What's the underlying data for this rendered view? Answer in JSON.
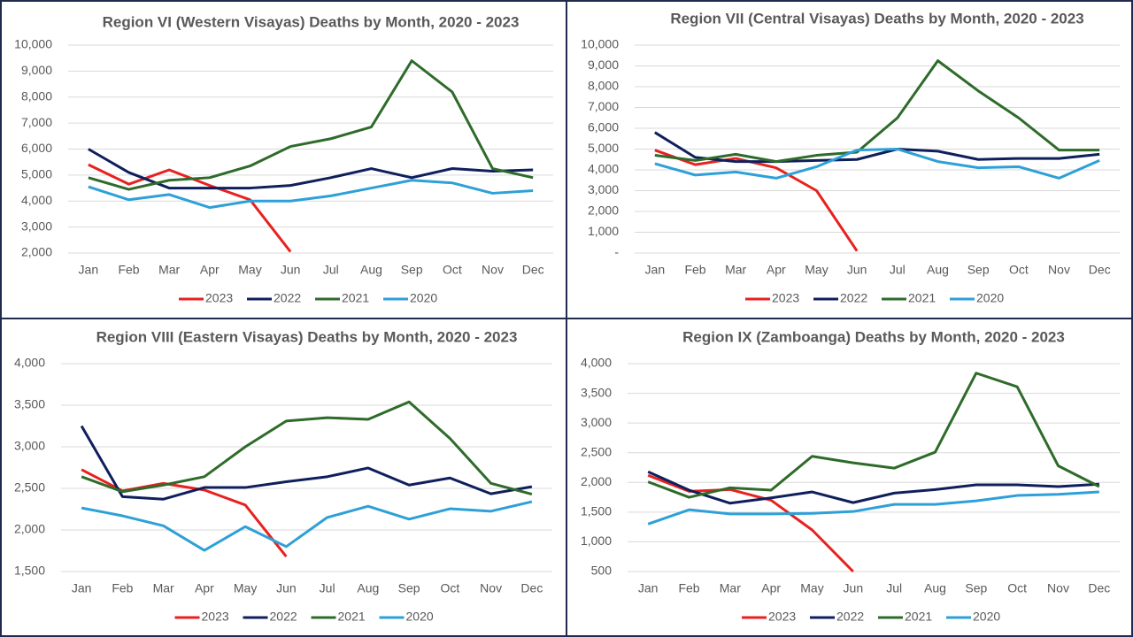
{
  "chart_data": [
    {
      "type": "line",
      "title": "Region VI (Western Visayas) Deaths by Month, 2020 - 2023",
      "categories": [
        "Jan",
        "Feb",
        "Mar",
        "Apr",
        "May",
        "Jun",
        "Jul",
        "Aug",
        "Sep",
        "Oct",
        "Nov",
        "Dec"
      ],
      "series": [
        {
          "name": "2023",
          "color": "#e8211f",
          "values": [
            5400,
            4650,
            5200,
            4600,
            4050,
            2050,
            null,
            null,
            null,
            null,
            null,
            null
          ]
        },
        {
          "name": "2022",
          "color": "#0f1f5c",
          "values": [
            6000,
            5100,
            4500,
            4500,
            4500,
            4600,
            4900,
            5250,
            4900,
            5250,
            5150,
            5200
          ]
        },
        {
          "name": "2021",
          "color": "#2e6b2a",
          "values": [
            4900,
            4450,
            4800,
            4900,
            5350,
            6100,
            6400,
            6850,
            9400,
            8200,
            5250,
            4900
          ]
        },
        {
          "name": "2020",
          "color": "#2ea0d8",
          "values": [
            4550,
            4050,
            4250,
            3750,
            4000,
            4000,
            4200,
            4500,
            4800,
            4700,
            4300,
            4400
          ]
        }
      ],
      "ylim": [
        2000,
        10000
      ],
      "yticks": [
        {
          "value": 2000,
          "label": "2,000"
        },
        {
          "value": 3000,
          "label": "3,000"
        },
        {
          "value": 4000,
          "label": "4,000"
        },
        {
          "value": 5000,
          "label": "5,000"
        },
        {
          "value": 6000,
          "label": "6,000"
        },
        {
          "value": 7000,
          "label": "7,000"
        },
        {
          "value": 8000,
          "label": "8,000"
        },
        {
          "value": 9000,
          "label": "9,000"
        },
        {
          "value": 10000,
          "label": "10,000"
        }
      ],
      "grid": true,
      "legend": "bottom"
    },
    {
      "type": "line",
      "title": "Region VII (Central Visayas) Deaths by Month, 2020 - 2023",
      "categories": [
        "Jan",
        "Feb",
        "Mar",
        "Apr",
        "May",
        "Jun",
        "Jul",
        "Aug",
        "Sep",
        "Oct",
        "Nov",
        "Dec"
      ],
      "series": [
        {
          "name": "2023",
          "color": "#e8211f",
          "values": [
            4950,
            4250,
            4550,
            4100,
            3000,
            100,
            null,
            null,
            null,
            null,
            null,
            null
          ]
        },
        {
          "name": "2022",
          "color": "#0f1f5c",
          "values": [
            5800,
            4600,
            4400,
            4400,
            4450,
            4500,
            5000,
            4900,
            4500,
            4550,
            4550,
            4750
          ]
        },
        {
          "name": "2021",
          "color": "#2e6b2a",
          "values": [
            4700,
            4450,
            4750,
            4400,
            4700,
            4850,
            6500,
            9250,
            7800,
            6500,
            4950,
            4950
          ]
        },
        {
          "name": "2020",
          "color": "#2ea0d8",
          "values": [
            4300,
            3750,
            3900,
            3600,
            4150,
            4950,
            5000,
            4400,
            4100,
            4150,
            3600,
            4450
          ]
        }
      ],
      "ylim": [
        0,
        10000
      ],
      "yticks": [
        {
          "value": 0,
          "label": "-"
        },
        {
          "value": 1000,
          "label": "1,000"
        },
        {
          "value": 2000,
          "label": "2,000"
        },
        {
          "value": 3000,
          "label": "3,000"
        },
        {
          "value": 4000,
          "label": "4,000"
        },
        {
          "value": 5000,
          "label": "5,000"
        },
        {
          "value": 6000,
          "label": "6,000"
        },
        {
          "value": 7000,
          "label": "7,000"
        },
        {
          "value": 8000,
          "label": "8,000"
        },
        {
          "value": 9000,
          "label": "9,000"
        },
        {
          "value": 10000,
          "label": "10,000"
        }
      ],
      "grid": true,
      "legend": "bottom"
    },
    {
      "type": "line",
      "title": "Region VIII (Eastern Visayas) Deaths by Month, 2020 - 2023",
      "categories": [
        "Jan",
        "Feb",
        "Mar",
        "Apr",
        "May",
        "Jun",
        "Jul",
        "Aug",
        "Sep",
        "Oct",
        "Nov",
        "Dec"
      ],
      "series": [
        {
          "name": "2023",
          "color": "#e8211f",
          "values": [
            2725,
            2470,
            2560,
            2480,
            2300,
            1680,
            null,
            null,
            null,
            null,
            null,
            null
          ]
        },
        {
          "name": "2022",
          "color": "#0f1f5c",
          "values": [
            3250,
            2400,
            2370,
            2510,
            2510,
            2580,
            2640,
            2745,
            2540,
            2625,
            2435,
            2520
          ]
        },
        {
          "name": "2021",
          "color": "#2e6b2a",
          "values": [
            2640,
            2460,
            2540,
            2640,
            3000,
            3310,
            3350,
            3330,
            3540,
            3100,
            2560,
            2430
          ]
        },
        {
          "name": "2020",
          "color": "#2ea0d8",
          "values": [
            2265,
            2170,
            2050,
            1755,
            2040,
            1800,
            2150,
            2285,
            2130,
            2255,
            2225,
            2340
          ]
        }
      ],
      "ylim": [
        1500,
        4000
      ],
      "yticks": [
        {
          "value": 1500,
          "label": "1,500"
        },
        {
          "value": 2000,
          "label": "2,000"
        },
        {
          "value": 2500,
          "label": "2,500"
        },
        {
          "value": 3000,
          "label": "3,000"
        },
        {
          "value": 3500,
          "label": "3,500"
        },
        {
          "value": 4000,
          "label": "4,000"
        }
      ],
      "grid": true,
      "legend": "bottom"
    },
    {
      "type": "line",
      "title": "Region IX (Zamboanga) Deaths by Month, 2020 - 2023",
      "categories": [
        "Jan",
        "Feb",
        "Mar",
        "Apr",
        "May",
        "Jun",
        "Jul",
        "Aug",
        "Sep",
        "Oct",
        "Nov",
        "Dec"
      ],
      "series": [
        {
          "name": "2023",
          "color": "#e8211f",
          "values": [
            2120,
            1850,
            1880,
            1700,
            1200,
            500,
            null,
            null,
            null,
            null,
            null,
            null
          ]
        },
        {
          "name": "2022",
          "color": "#0f1f5c",
          "values": [
            2180,
            1870,
            1650,
            1740,
            1840,
            1660,
            1820,
            1880,
            1960,
            1960,
            1930,
            1970
          ]
        },
        {
          "name": "2021",
          "color": "#2e6b2a",
          "values": [
            2010,
            1750,
            1910,
            1870,
            2440,
            2330,
            2240,
            2510,
            3840,
            3610,
            2280,
            1930
          ]
        },
        {
          "name": "2020",
          "color": "#2ea0d8",
          "values": [
            1300,
            1540,
            1470,
            1470,
            1480,
            1510,
            1630,
            1630,
            1690,
            1780,
            1800,
            1840
          ]
        }
      ],
      "ylim": [
        500,
        4000
      ],
      "yticks": [
        500,
        {
          "value": 1000,
          "label": "1,000"
        },
        {
          "value": 1500,
          "label": "1,500"
        },
        {
          "value": 2000,
          "label": "2,000"
        },
        {
          "value": 2500,
          "label": "2,500"
        },
        {
          "value": 3000,
          "label": "3,000"
        },
        {
          "value": 3500,
          "label": "3,500"
        },
        {
          "value": 4000,
          "label": "4,000"
        }
      ],
      "grid": true,
      "legend": "bottom"
    }
  ]
}
